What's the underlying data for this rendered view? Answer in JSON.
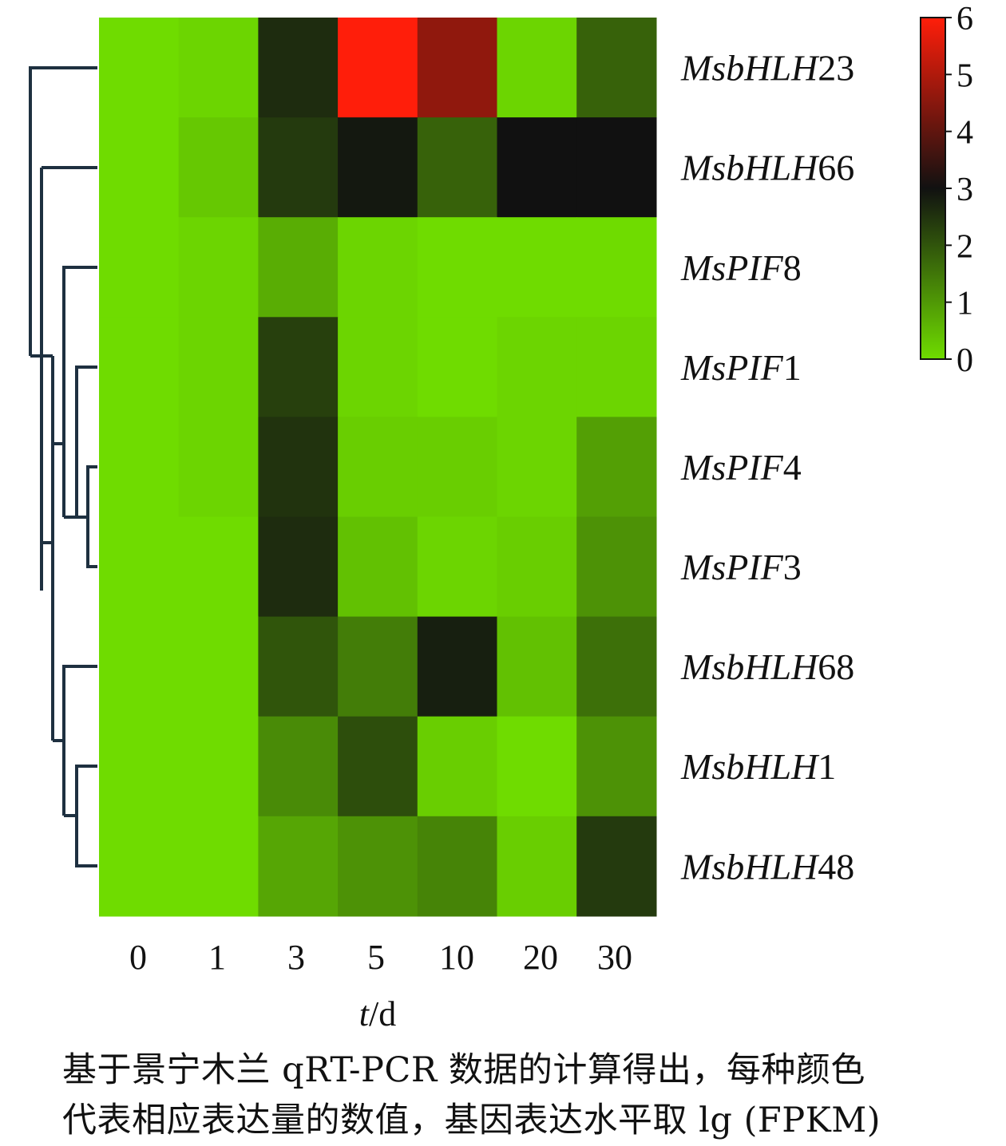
{
  "chart_data": {
    "type": "heatmap",
    "x_categories": [
      "0",
      "1",
      "3",
      "5",
      "10",
      "20",
      "30"
    ],
    "xlabel_italic": "t",
    "xlabel_unit": "/d",
    "row_labels": [
      {
        "italic": "MsbHLH",
        "suffix": "23"
      },
      {
        "italic": "MsbHLH",
        "suffix": "66"
      },
      {
        "italic": "MsPIF",
        "suffix": "8"
      },
      {
        "italic": "MsPIF",
        "suffix": "1"
      },
      {
        "italic": "MsPIF",
        "suffix": "4"
      },
      {
        "italic": "MsPIF",
        "suffix": "3"
      },
      {
        "italic": "MsbHLH",
        "suffix": "68"
      },
      {
        "italic": "MsbHLH",
        "suffix": "1"
      },
      {
        "italic": "MsbHLH",
        "suffix": "48"
      }
    ],
    "values": [
      [
        0.0,
        0.1,
        2.6,
        6.0,
        4.6,
        0.1,
        1.8
      ],
      [
        0.0,
        0.3,
        2.4,
        2.9,
        1.8,
        3.0,
        3.0
      ],
      [
        0.0,
        0.1,
        0.7,
        0.1,
        0.0,
        0.0,
        0.0
      ],
      [
        0.0,
        0.1,
        2.3,
        0.1,
        0.0,
        0.1,
        0.1
      ],
      [
        0.0,
        0.1,
        2.5,
        0.2,
        0.2,
        0.1,
        0.9
      ],
      [
        0.0,
        0.0,
        2.6,
        0.4,
        0.1,
        0.2,
        1.1
      ],
      [
        0.0,
        0.0,
        2.0,
        1.4,
        2.8,
        0.4,
        1.6
      ],
      [
        0.0,
        0.0,
        1.2,
        2.1,
        0.2,
        0.0,
        1.1
      ],
      [
        0.0,
        0.0,
        0.8,
        1.1,
        1.3,
        0.2,
        2.4
      ]
    ],
    "colorbar": {
      "min": 0,
      "max": 6,
      "ticks": [
        "0",
        "1",
        "2",
        "3",
        "4",
        "5",
        "6"
      ],
      "colors": {
        "low": "#6fdc00",
        "mid": "#111111",
        "high": "#ff1e0a"
      },
      "mid_value": 3
    },
    "dendrogram": "rows"
  },
  "caption": {
    "line1": "基于景宁木兰 qRT-PCR 数据的计算得出，每种颜色",
    "line2": "代表相应表达量的数值，基因表达水平取 lg (FPKM)"
  }
}
